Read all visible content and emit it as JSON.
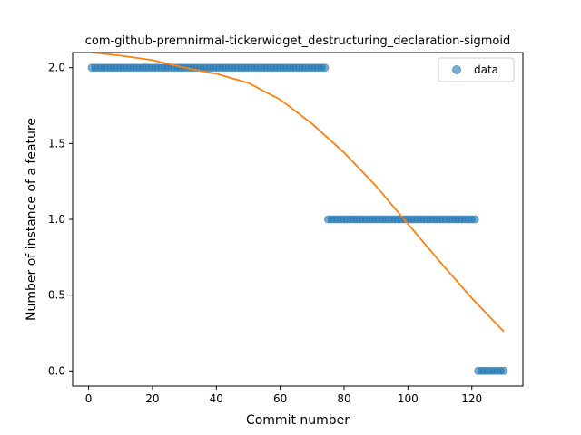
{
  "chart_data": {
    "type": "scatter",
    "title": "com-github-premnirmal-tickerwidget_destructuring_declaration-sigmoid",
    "xlabel": "Commit number",
    "ylabel": "Number of instance of a feature",
    "xlim": [
      -5,
      136
    ],
    "ylim": [
      -0.1,
      2.1
    ],
    "xticks": [
      0,
      20,
      40,
      60,
      80,
      100,
      120
    ],
    "yticks": [
      0.0,
      0.5,
      1.0,
      1.5,
      2.0
    ],
    "ytick_format": 1,
    "grid": false,
    "legend": {
      "location": "upper-right",
      "entries": [
        {
          "label": "data",
          "marker": "circle",
          "color": "#1f77b4"
        }
      ]
    },
    "series": [
      {
        "name": "data",
        "kind": "scatter",
        "color": "#1f77b4",
        "alpha": 0.6,
        "segments": [
          {
            "x_start": 1,
            "x_end": 74,
            "step": 1,
            "y": 2
          },
          {
            "x_start": 75,
            "x_end": 121,
            "step": 1,
            "y": 1
          },
          {
            "x_start": 122,
            "x_end": 130,
            "step": 1,
            "y": 0
          }
        ]
      },
      {
        "kind": "line",
        "color": "#ff7f0e",
        "x": [
          1,
          10,
          20,
          30,
          40,
          50,
          60,
          70,
          80,
          90,
          100,
          110,
          120,
          130
        ],
        "y": [
          2.1,
          2.08,
          2.05,
          2.0,
          1.96,
          1.9,
          1.79,
          1.63,
          1.44,
          1.22,
          0.97,
          0.72,
          0.48,
          0.26
        ]
      }
    ]
  }
}
